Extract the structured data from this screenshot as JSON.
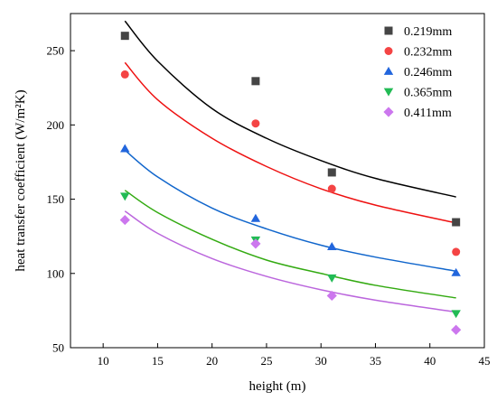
{
  "chart_data": {
    "type": "scatter",
    "title": "",
    "xlabel": "height (m)",
    "ylabel": "heat transfer coefficient (W/m²K)",
    "xlim": [
      7,
      45
    ],
    "ylim": [
      50,
      275
    ],
    "xticks": [
      10,
      15,
      20,
      25,
      30,
      35,
      40,
      45
    ],
    "yticks": [
      50,
      100,
      150,
      200,
      250
    ],
    "grid": false,
    "legend_position": "top-right",
    "series": [
      {
        "name": "0.219mm",
        "color": "#454545",
        "line_color": "#000000",
        "marker": "square",
        "points": [
          [
            12,
            260
          ],
          [
            24,
            229.5
          ],
          [
            31,
            168
          ],
          [
            42.4,
            134.5
          ]
        ],
        "fit": [
          [
            12,
            270
          ],
          [
            15,
            243
          ],
          [
            20,
            211
          ],
          [
            25,
            191
          ],
          [
            30,
            176
          ],
          [
            35,
            164
          ],
          [
            42.4,
            151.5
          ]
        ]
      },
      {
        "name": "0.232mm",
        "color": "#f44444",
        "line_color": "#ee1111",
        "marker": "circle",
        "points": [
          [
            12,
            234
          ],
          [
            24,
            201
          ],
          [
            31,
            157
          ],
          [
            42.4,
            114.5
          ]
        ],
        "fit": [
          [
            12,
            242
          ],
          [
            15,
            217
          ],
          [
            20,
            191
          ],
          [
            25,
            172
          ],
          [
            30,
            157
          ],
          [
            35,
            146
          ],
          [
            42.4,
            134
          ]
        ]
      },
      {
        "name": "0.246mm",
        "color": "#2266dd",
        "line_color": "#1166cc",
        "marker": "triangle-up",
        "points": [
          [
            12,
            184
          ],
          [
            24,
            137
          ],
          [
            31,
            118
          ],
          [
            42.4,
            100.5
          ]
        ],
        "fit": [
          [
            12,
            183
          ],
          [
            15,
            165
          ],
          [
            20,
            144
          ],
          [
            25,
            130
          ],
          [
            30,
            119
          ],
          [
            35,
            111
          ],
          [
            42.4,
            101.5
          ]
        ]
      },
      {
        "name": "0.365mm",
        "color": "#22bb55",
        "line_color": "#33aa11",
        "marker": "triangle-down",
        "points": [
          [
            12,
            152
          ],
          [
            24,
            122.5
          ],
          [
            31,
            97
          ],
          [
            42.4,
            73
          ]
        ],
        "fit": [
          [
            12,
            156
          ],
          [
            15,
            141
          ],
          [
            20,
            123
          ],
          [
            25,
            109
          ],
          [
            30,
            100
          ],
          [
            35,
            92
          ],
          [
            42.4,
            83.5
          ]
        ]
      },
      {
        "name": "0.411mm",
        "color": "#cc77ee",
        "line_color": "#bb66dd",
        "marker": "diamond",
        "points": [
          [
            12,
            136
          ],
          [
            24,
            120
          ],
          [
            31,
            85
          ],
          [
            42.4,
            62
          ]
        ],
        "fit": [
          [
            12,
            142
          ],
          [
            15,
            127
          ],
          [
            20,
            110
          ],
          [
            25,
            98
          ],
          [
            30,
            89
          ],
          [
            35,
            82
          ],
          [
            42.4,
            74
          ]
        ]
      }
    ]
  }
}
